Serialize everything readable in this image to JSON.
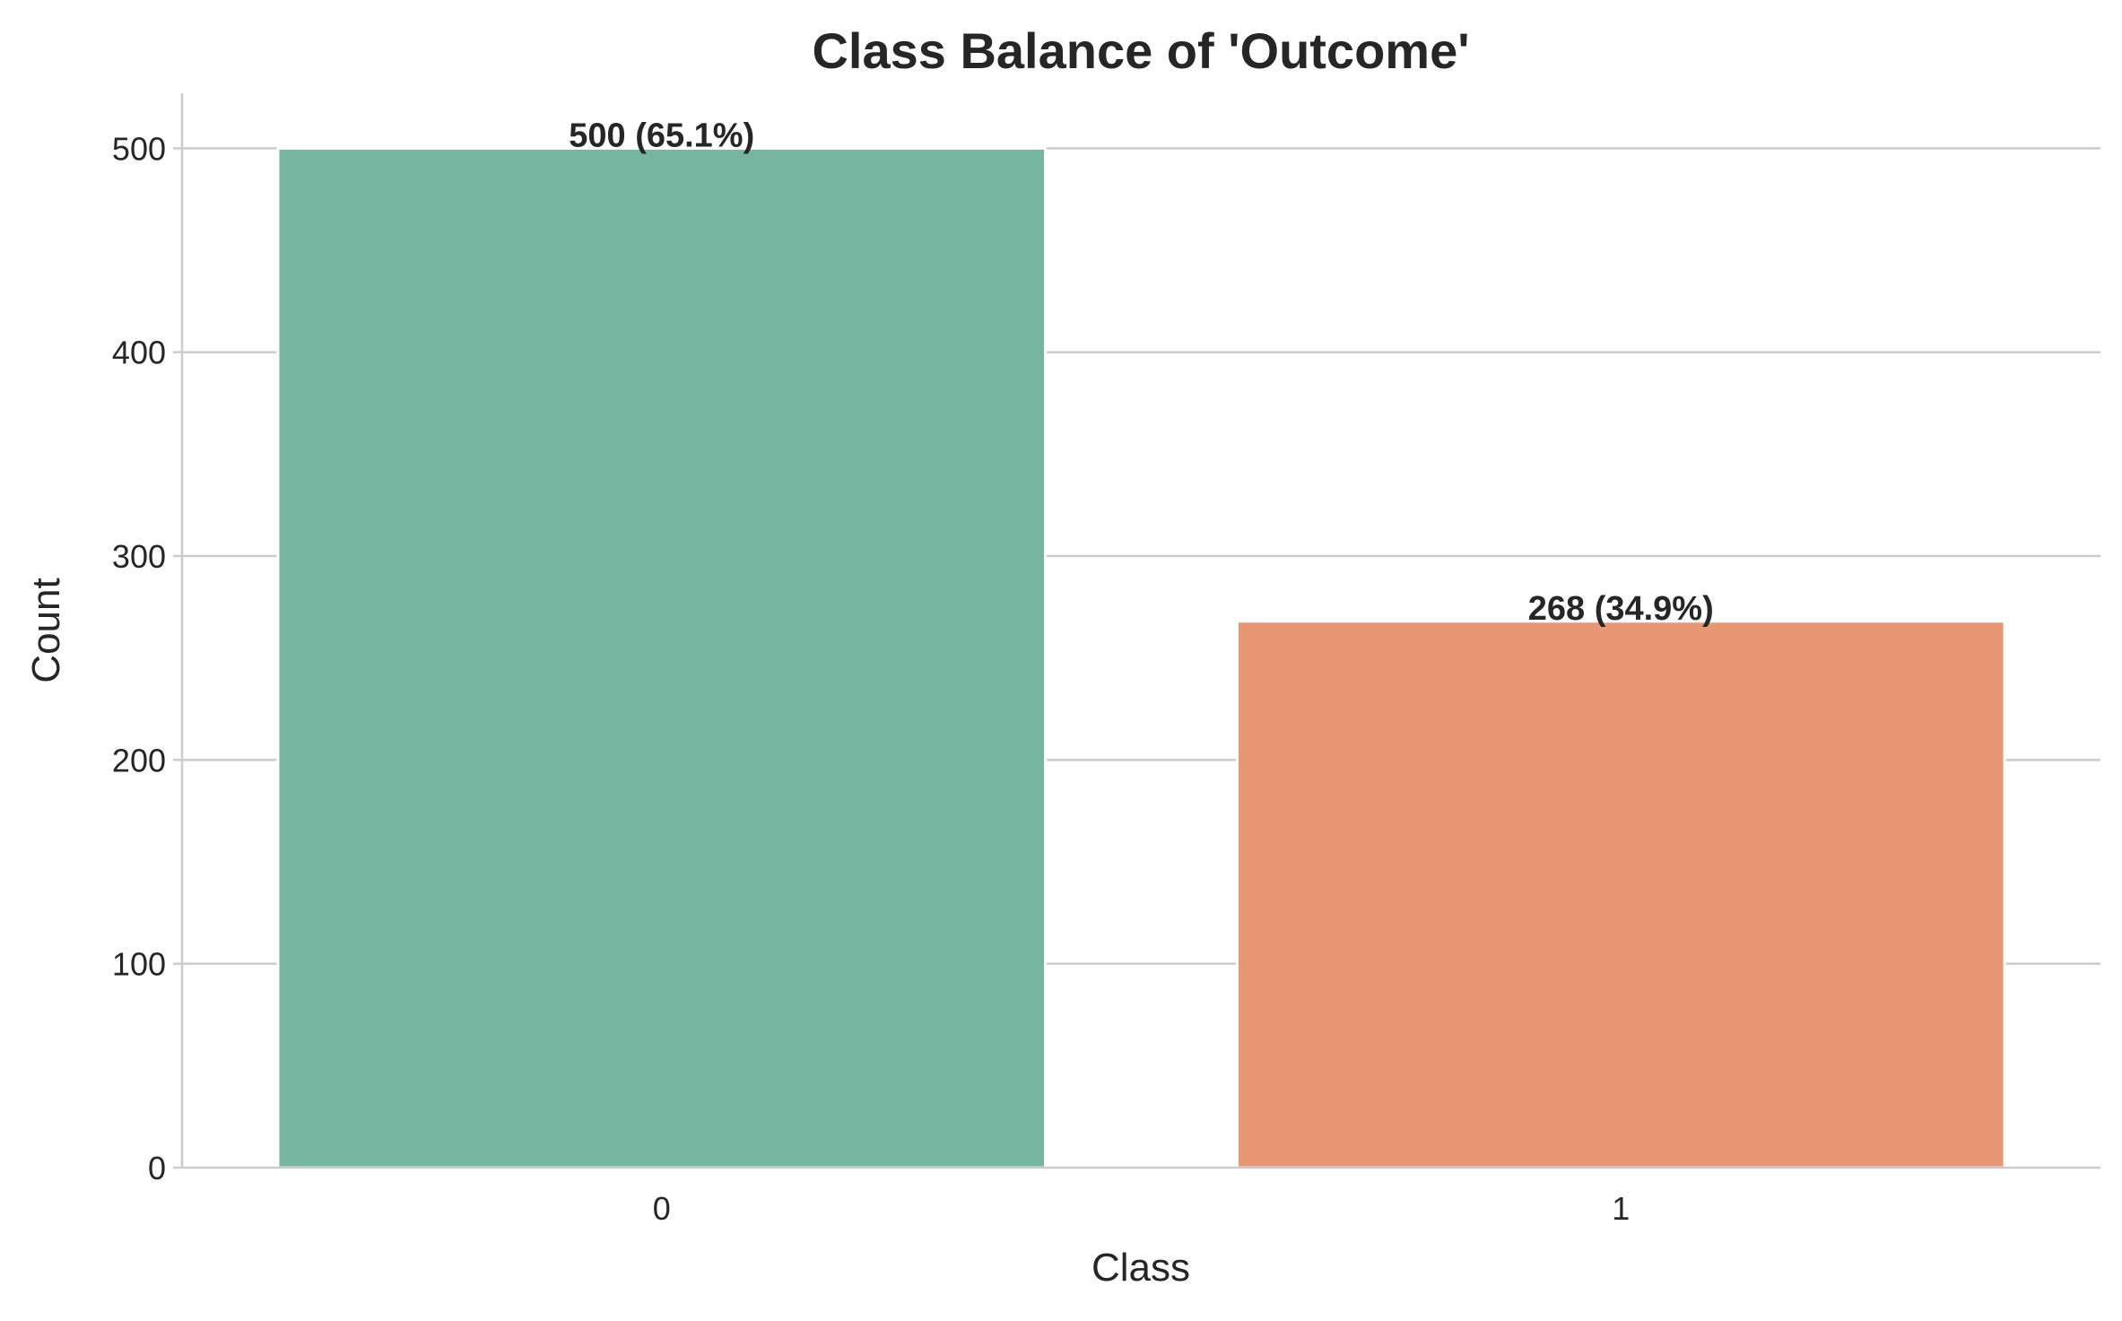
{
  "chart_data": {
    "type": "bar",
    "title": "Class Balance of 'Outcome'",
    "xlabel": "Class",
    "ylabel": "Count",
    "categories": [
      "0",
      "1"
    ],
    "values": [
      500,
      268
    ],
    "data_labels": [
      "500 (65.1%)",
      "268 (34.9%)"
    ],
    "colors": [
      "#76b5a0",
      "#e89775"
    ],
    "ylim": [
      0,
      527
    ],
    "yticks": [
      0,
      100,
      200,
      300,
      400,
      500
    ],
    "ytick_labels": [
      "0",
      "100",
      "200",
      "300",
      "400",
      "500"
    ],
    "grid": "horizontal",
    "legend": "none"
  }
}
